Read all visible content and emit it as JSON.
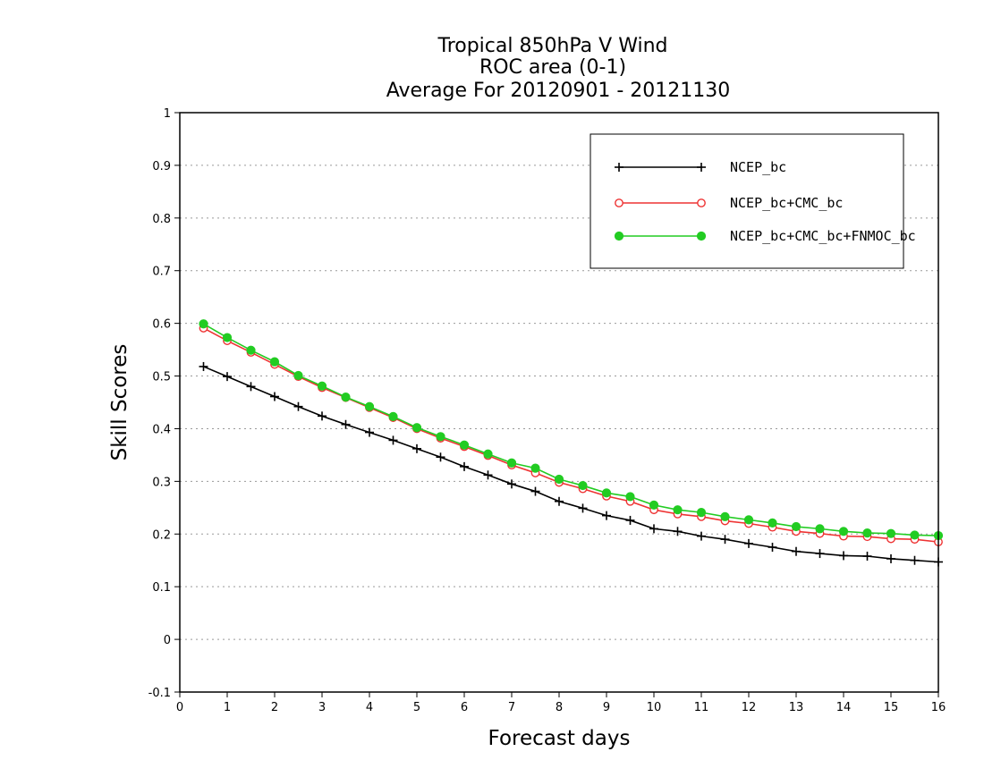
{
  "chart_data": {
    "type": "line",
    "title_lines": [
      "Tropical 850hPa V Wind",
      "ROC area (0-1)",
      "Average For 20120901 - 20121130"
    ],
    "xlabel": "Forecast days",
    "ylabel": "Skill Scores",
    "xlim": [
      0,
      16
    ],
    "ylim": [
      -0.1,
      1
    ],
    "x_ticks": [
      "0",
      "1",
      "2",
      "3",
      "4",
      "5",
      "6",
      "7",
      "8",
      "9",
      "10",
      "11",
      "12",
      "13",
      "14",
      "15",
      "16"
    ],
    "y_ticks": [
      "-0.1",
      "0",
      "0.1",
      "0.2",
      "0.3",
      "0.4",
      "0.5",
      "0.6",
      "0.7",
      "0.8",
      "0.9",
      "1"
    ],
    "grid": true,
    "legend_position": "top-right",
    "x": [
      0.5,
      1,
      1.5,
      2,
      2.5,
      3,
      3.5,
      4,
      4.5,
      5,
      5.5,
      6,
      6.5,
      7,
      7.5,
      8,
      8.5,
      9,
      9.5,
      10,
      10.5,
      11,
      11.5,
      12,
      12.5,
      13,
      13.5,
      14,
      14.5,
      15,
      15.5,
      16
    ],
    "series": [
      {
        "name": "NCEP_bc",
        "marker": "plus",
        "color": "#000000",
        "values": [
          0.518,
          0.499,
          0.48,
          0.461,
          0.442,
          0.424,
          0.408,
          0.393,
          0.378,
          0.362,
          0.346,
          0.328,
          0.312,
          0.295,
          0.281,
          0.262,
          0.249,
          0.235,
          0.226,
          0.21,
          0.205,
          0.196,
          0.19,
          0.182,
          0.175,
          0.167,
          0.163,
          0.159,
          0.158,
          0.153,
          0.15,
          0.147
        ]
      },
      {
        "name": "NCEP_bc+CMC_bc",
        "marker": "circle-open",
        "color": "#ee3333",
        "values": [
          0.591,
          0.567,
          0.545,
          0.522,
          0.499,
          0.478,
          0.459,
          0.44,
          0.421,
          0.4,
          0.382,
          0.366,
          0.349,
          0.331,
          0.316,
          0.298,
          0.286,
          0.272,
          0.262,
          0.246,
          0.238,
          0.233,
          0.225,
          0.22,
          0.213,
          0.205,
          0.201,
          0.196,
          0.195,
          0.191,
          0.19,
          0.185
        ]
      },
      {
        "name": "NCEP_bc+CMC_bc+FNMOC_bc",
        "marker": "circle-filled",
        "color": "#22cc22",
        "values": [
          0.599,
          0.573,
          0.549,
          0.527,
          0.501,
          0.481,
          0.46,
          0.442,
          0.423,
          0.402,
          0.385,
          0.369,
          0.352,
          0.335,
          0.325,
          0.304,
          0.292,
          0.278,
          0.271,
          0.255,
          0.246,
          0.241,
          0.233,
          0.227,
          0.221,
          0.214,
          0.21,
          0.205,
          0.202,
          0.201,
          0.198,
          0.197
        ]
      }
    ]
  }
}
